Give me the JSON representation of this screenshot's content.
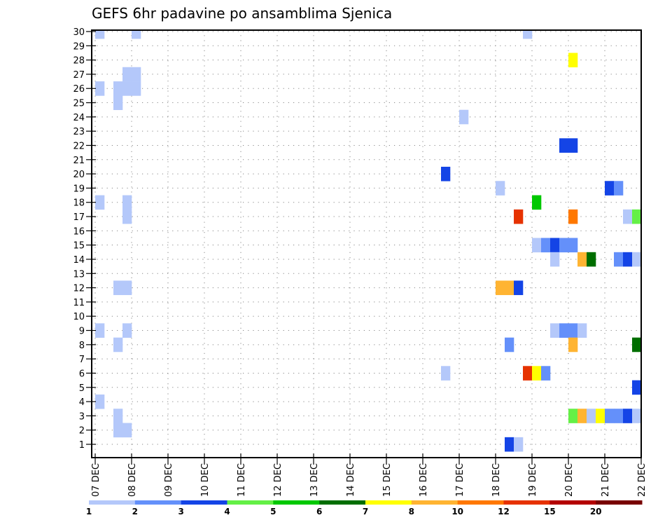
{
  "chart_data": {
    "type": "heatmap",
    "title": "GEFS 6hr padavine po ansamblima Sjenica",
    "xlabel": "",
    "ylabel": "",
    "x_unit": "6-hour steps from 07 DEC 00Z",
    "x_tick_labels": [
      "07 DEC",
      "08 DEC",
      "09 DEC",
      "10 DEC",
      "11 DEC",
      "12 DEC",
      "13 DEC",
      "14 DEC",
      "15 DEC",
      "16 DEC",
      "17 DEC",
      "18 DEC",
      "19 DEC",
      "20 DEC",
      "21 DEC",
      "22 DEC"
    ],
    "y_tick_labels": [
      "1",
      "2",
      "3",
      "4",
      "5",
      "6",
      "7",
      "8",
      "9",
      "10",
      "11",
      "12",
      "13",
      "14",
      "15",
      "16",
      "17",
      "18",
      "19",
      "20",
      "21",
      "22",
      "23",
      "24",
      "25",
      "26",
      "27",
      "28",
      "29",
      "30"
    ],
    "xlim": [
      0,
      60
    ],
    "ylim": [
      1,
      30
    ],
    "grid": true,
    "colorbar": {
      "position": "bottom",
      "labels": [
        "1",
        "2",
        "3",
        "4",
        "5",
        "6",
        "7",
        "8",
        "10",
        "12",
        "15",
        "20"
      ],
      "colors": [
        "#b4c8fa",
        "#6490fa",
        "#1444e6",
        "#64f046",
        "#00c800",
        "#006e00",
        "#ffff00",
        "#ffb432",
        "#ff7800",
        "#e63200",
        "#b40000",
        "#780000"
      ]
    },
    "cells": [
      {
        "member": 30,
        "step": 0,
        "bin": 0
      },
      {
        "member": 30,
        "step": 4,
        "bin": 0
      },
      {
        "member": 30,
        "step": 47,
        "bin": 0
      },
      {
        "member": 28,
        "step": 52,
        "bin": 6
      },
      {
        "member": 27,
        "step": 3,
        "bin": 0
      },
      {
        "member": 27,
        "step": 4,
        "bin": 0
      },
      {
        "member": 26,
        "step": 0,
        "bin": 0
      },
      {
        "member": 26,
        "step": 2,
        "bin": 0
      },
      {
        "member": 26,
        "step": 3,
        "bin": 0
      },
      {
        "member": 26,
        "step": 4,
        "bin": 0
      },
      {
        "member": 25,
        "step": 2,
        "bin": 0
      },
      {
        "member": 24,
        "step": 40,
        "bin": 0
      },
      {
        "member": 22,
        "step": 51,
        "bin": 2
      },
      {
        "member": 22,
        "step": 52,
        "bin": 2
      },
      {
        "member": 20,
        "step": 38,
        "bin": 2
      },
      {
        "member": 19,
        "step": 44,
        "bin": 0
      },
      {
        "member": 19,
        "step": 56,
        "bin": 2
      },
      {
        "member": 19,
        "step": 57,
        "bin": 1
      },
      {
        "member": 18,
        "step": 0,
        "bin": 0
      },
      {
        "member": 18,
        "step": 3,
        "bin": 0
      },
      {
        "member": 18,
        "step": 48,
        "bin": 4
      },
      {
        "member": 17,
        "step": 3,
        "bin": 0
      },
      {
        "member": 17,
        "step": 46,
        "bin": 9
      },
      {
        "member": 17,
        "step": 52,
        "bin": 8
      },
      {
        "member": 17,
        "step": 58,
        "bin": 0
      },
      {
        "member": 17,
        "step": 59,
        "bin": 3
      },
      {
        "member": 15,
        "step": 48,
        "bin": 0
      },
      {
        "member": 15,
        "step": 49,
        "bin": 1
      },
      {
        "member": 15,
        "step": 50,
        "bin": 2
      },
      {
        "member": 15,
        "step": 51,
        "bin": 1
      },
      {
        "member": 15,
        "step": 52,
        "bin": 1
      },
      {
        "member": 14,
        "step": 50,
        "bin": 0
      },
      {
        "member": 14,
        "step": 53,
        "bin": 7
      },
      {
        "member": 14,
        "step": 54,
        "bin": 5
      },
      {
        "member": 14,
        "step": 57,
        "bin": 1
      },
      {
        "member": 14,
        "step": 58,
        "bin": 2
      },
      {
        "member": 14,
        "step": 59,
        "bin": 0
      },
      {
        "member": 12,
        "step": 2,
        "bin": 0
      },
      {
        "member": 12,
        "step": 3,
        "bin": 0
      },
      {
        "member": 12,
        "step": 44,
        "bin": 7
      },
      {
        "member": 12,
        "step": 45,
        "bin": 7
      },
      {
        "member": 12,
        "step": 46,
        "bin": 2
      },
      {
        "member": 9,
        "step": 0,
        "bin": 0
      },
      {
        "member": 9,
        "step": 3,
        "bin": 0
      },
      {
        "member": 9,
        "step": 50,
        "bin": 0
      },
      {
        "member": 9,
        "step": 51,
        "bin": 1
      },
      {
        "member": 9,
        "step": 52,
        "bin": 1
      },
      {
        "member": 9,
        "step": 53,
        "bin": 0
      },
      {
        "member": 8,
        "step": 2,
        "bin": 0
      },
      {
        "member": 8,
        "step": 45,
        "bin": 1
      },
      {
        "member": 8,
        "step": 52,
        "bin": 7
      },
      {
        "member": 8,
        "step": 59,
        "bin": 5
      },
      {
        "member": 6,
        "step": 38,
        "bin": 0
      },
      {
        "member": 6,
        "step": 47,
        "bin": 9
      },
      {
        "member": 6,
        "step": 48,
        "bin": 6
      },
      {
        "member": 6,
        "step": 49,
        "bin": 1
      },
      {
        "member": 5,
        "step": 59,
        "bin": 2
      },
      {
        "member": 4,
        "step": 0,
        "bin": 0
      },
      {
        "member": 3,
        "step": 2,
        "bin": 0
      },
      {
        "member": 3,
        "step": 52,
        "bin": 3
      },
      {
        "member": 3,
        "step": 53,
        "bin": 7
      },
      {
        "member": 3,
        "step": 54,
        "bin": 0
      },
      {
        "member": 3,
        "step": 55,
        "bin": 6
      },
      {
        "member": 3,
        "step": 56,
        "bin": 1
      },
      {
        "member": 3,
        "step": 57,
        "bin": 1
      },
      {
        "member": 3,
        "step": 58,
        "bin": 2
      },
      {
        "member": 3,
        "step": 59,
        "bin": 0
      },
      {
        "member": 2,
        "step": 2,
        "bin": 0
      },
      {
        "member": 2,
        "step": 3,
        "bin": 0
      },
      {
        "member": 1,
        "step": 45,
        "bin": 2
      },
      {
        "member": 1,
        "step": 46,
        "bin": 0
      }
    ]
  }
}
